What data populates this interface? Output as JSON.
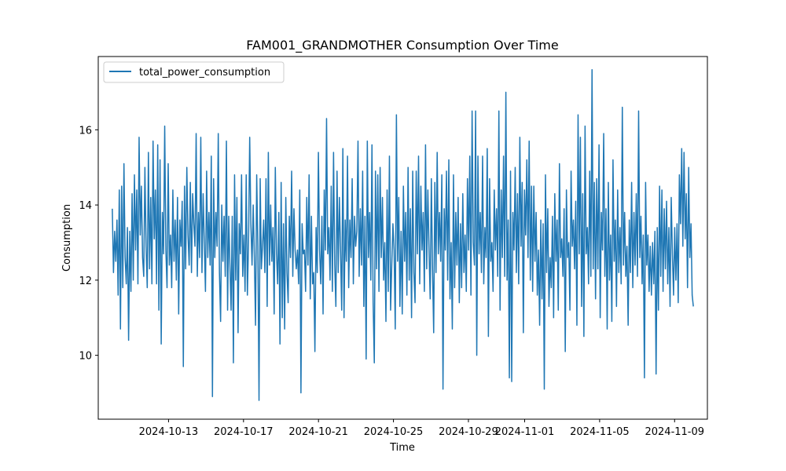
{
  "chart_data": {
    "type": "line",
    "title": "FAM001_GRANDMOTHER Consumption Over Time",
    "xlabel": "Time",
    "ylabel": "Consumption",
    "x_range": [
      "2024-10-10",
      "2024-11-10"
    ],
    "xlim": [
      "2024-10-09T06:00",
      "2024-11-10T18:00"
    ],
    "ylim": [
      8.3,
      17.95
    ],
    "x_ticks": [
      "2024-10-13",
      "2024-10-17",
      "2024-10-21",
      "2024-10-25",
      "2024-10-29",
      "2024-11-01",
      "2024-11-05",
      "2024-11-09"
    ],
    "y_ticks": [
      10,
      12,
      14,
      16
    ],
    "legend": {
      "position": "top-left",
      "entries": [
        "total_power_consumption"
      ]
    },
    "grid": false,
    "color": "#1f77b4",
    "series": [
      {
        "name": "total_power_consumption",
        "values": [
          13.9,
          12.2,
          13.3,
          12.5,
          13.6,
          11.6,
          14.4,
          10.7,
          14.5,
          11.8,
          15.1,
          12.6,
          11.9,
          13.4,
          10.4,
          13.3,
          11.7,
          14.3,
          12.0,
          14.8,
          12.8,
          14.4,
          11.9,
          15.8,
          13.2,
          14.5,
          12.6,
          12.1,
          15.0,
          12.9,
          11.8,
          15.4,
          12.3,
          14.2,
          11.9,
          15.7,
          13.1,
          14.4,
          11.9,
          15.6,
          11.2,
          15.2,
          10.3,
          13.8,
          12.7,
          16.1,
          12.8,
          11.8,
          15.1,
          12.4,
          13.2,
          11.8,
          14.4,
          12.5,
          13.6,
          12.0,
          14.2,
          11.1,
          13.6,
          12.9,
          14.1,
          9.7,
          14.5,
          12.3,
          15.0,
          13.2,
          12.4,
          14.6,
          12.2,
          14.3,
          13.5,
          12.9,
          15.9,
          12.1,
          13.8,
          12.6,
          15.8,
          12.2,
          14.3,
          13.0,
          11.7,
          14.9,
          12.6,
          13.8,
          12.4,
          15.3,
          8.9,
          14.7,
          12.6,
          13.8,
          12.9,
          15.9,
          12.2,
          10.9,
          14.0,
          12.5,
          13.7,
          12.1,
          15.7,
          11.2,
          13.7,
          12.4,
          11.2,
          13.7,
          9.8,
          14.8,
          12.0,
          14.2,
          10.6,
          13.5,
          12.7,
          14.8,
          12.1,
          13.2,
          11.7,
          14.8,
          11.6,
          13.0,
          15.8,
          13.5,
          12.4,
          14.0,
          12.6,
          10.8,
          14.8,
          12.9,
          8.8,
          14.7,
          12.3,
          12.9,
          13.6,
          12.2,
          14.7,
          11.3,
          15.4,
          12.4,
          14.0,
          12.5,
          13.4,
          11.1,
          15.0,
          12.7,
          11.9,
          13.8,
          10.3,
          14.6,
          11.0,
          13.5,
          10.7,
          14.2,
          12.2,
          11.4,
          13.7,
          12.6,
          14.9,
          12.1,
          13.9,
          12.8,
          12.3,
          12.8,
          11.9,
          14.4,
          9.0,
          13.5,
          12.7,
          12.8,
          11.7,
          14.2,
          12.4,
          14.8,
          11.5,
          13.7,
          11.9,
          12.2,
          10.1,
          13.4,
          12.2,
          15.4,
          12.8,
          11.9,
          13.7,
          11.1,
          14.4,
          12.8,
          16.3,
          12.7,
          13.4,
          12.0,
          14.5,
          11.7,
          15.4,
          12.4,
          11.3,
          14.9,
          12.2,
          14.2,
          12.8,
          11.2,
          15.5,
          11.0,
          13.6,
          12.5,
          15.3,
          11.8,
          13.6,
          12.6,
          14.7,
          11.9,
          13.7,
          12.9,
          13.3,
          15.7,
          12.1,
          13.9,
          12.4,
          14.9,
          11.3,
          13.7,
          9.9,
          15.7,
          12.6,
          13.8,
          12.0,
          15.6,
          11.4,
          9.8,
          14.9,
          12.3,
          14.8,
          11.7,
          15.0,
          12.6,
          14.2,
          12.0,
          13.0,
          10.9,
          14.4,
          11.7,
          15.3,
          11.2,
          12.4,
          13.5,
          12.8,
          10.7,
          16.4,
          12.5,
          14.2,
          11.3,
          13.3,
          11.1,
          14.5,
          12.5,
          13.8,
          11.6,
          15.0,
          12.0,
          13.9,
          11.0,
          14.9,
          12.2,
          11.4,
          14.9,
          12.7,
          15.3,
          11.9,
          14.5,
          12.8,
          13.8,
          11.7,
          15.6,
          12.3,
          14.4,
          12.8,
          11.5,
          14.7,
          12.3,
          10.6,
          14.6,
          12.2,
          15.4,
          12.7,
          13.8,
          12.5,
          14.8,
          9.1,
          13.9,
          12.8,
          14.9,
          12.0,
          15.2,
          11.5,
          13.0,
          10.7,
          14.8,
          11.8,
          13.8,
          12.4,
          14.2,
          11.4,
          13.5,
          11.8,
          14.3,
          12.2,
          13.2,
          11.7,
          14.7,
          12.8,
          15.3,
          11.6,
          16.5,
          13.0,
          12.4,
          16.5,
          10.0,
          15.3,
          12.7,
          13.8,
          12.2,
          15.3,
          11.9,
          13.4,
          12.6,
          15.5,
          10.5,
          14.7,
          12.5,
          13.0,
          11.7,
          14.4,
          12.8,
          13.9,
          12.1,
          16.5,
          11.2,
          14.4,
          12.6,
          15.3,
          12.1,
          17.0,
          12.0,
          13.6,
          9.4,
          14.9,
          9.3,
          13.8,
          12.8,
          15.0,
          12.2,
          14.3,
          11.9,
          15.8,
          12.9,
          14.6,
          10.6,
          14.4,
          13.2,
          15.2,
          12.6,
          15.7,
          12.0,
          14.5,
          11.7,
          14.5,
          12.5,
          13.8,
          11.6,
          12.8,
          10.8,
          13.6,
          11.5,
          13.5,
          9.1,
          14.8,
          12.2,
          13.9,
          11.3,
          12.6,
          11.8,
          13.7,
          11.0,
          14.3,
          12.5,
          13.6,
          11.2,
          15.1,
          12.6,
          13.1,
          12.1,
          13.9,
          10.1,
          14.4,
          12.6,
          13.0,
          11.2,
          14.9,
          12.9,
          13.6,
          12.3,
          14.1,
          10.8,
          16.4,
          12.7,
          15.8,
          11.3,
          14.3,
          10.5,
          16.1,
          12.7,
          13.4,
          11.9,
          14.9,
          12.1,
          17.6,
          12.3,
          14.6,
          11.5,
          14.7,
          12.3,
          15.6,
          11.0,
          13.8,
          12.8,
          15.9,
          12.1,
          13.9,
          10.7,
          14.6,
          12.0,
          13.2,
          10.9,
          15.2,
          12.5,
          13.6,
          11.3,
          14.4,
          12.2,
          13.4,
          11.9,
          16.6,
          12.4,
          13.8,
          12.1,
          12.9,
          10.8,
          13.6,
          12.2,
          14.6,
          11.8,
          13.8,
          12.4,
          14.3,
          12.1,
          16.5,
          12.6,
          13.7,
          11.9,
          13.2,
          9.4,
          14.6,
          12.4,
          13.2,
          11.7,
          12.9,
          11.6,
          13.0,
          11.9,
          13.3,
          9.5,
          13.4,
          11.2,
          14.5,
          12.1,
          14.4,
          11.7,
          13.9,
          12.3,
          14.1,
          11.9,
          13.4,
          11.3,
          14.2,
          12.7,
          11.6,
          13.4,
          12.0,
          13.5,
          11.4,
          14.8,
          13.5,
          15.5,
          12.9,
          15.4,
          13.1,
          14.3,
          11.8,
          15.0,
          12.6,
          13.5,
          11.6,
          11.3
        ]
      }
    ]
  }
}
